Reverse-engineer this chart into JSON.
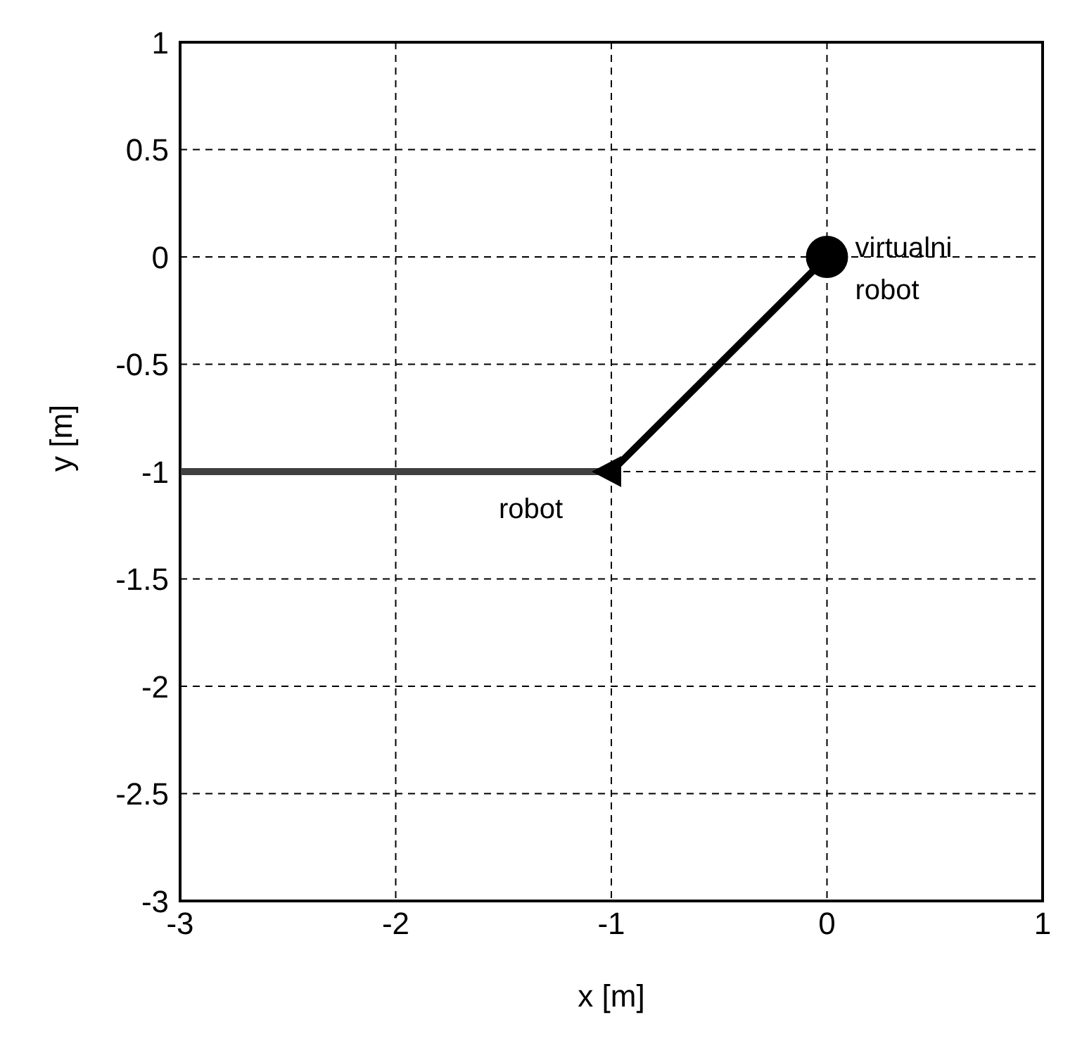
{
  "chart_data": {
    "type": "line",
    "xlabel": "x [m]",
    "ylabel": "y [m]",
    "xlim": [
      -3,
      1
    ],
    "ylim": [
      -3,
      1
    ],
    "xticks": [
      -3,
      -2,
      -1,
      0,
      1
    ],
    "yticks": [
      -3,
      -2.5,
      -2,
      -1.5,
      -1,
      -0.5,
      0,
      0.5,
      1
    ],
    "grid": true,
    "line_style": "solid",
    "series": [
      {
        "color": "#404040",
        "x": [
          -3,
          -1
        ],
        "values": [
          -1,
          -1
        ],
        "marker": "none"
      },
      {
        "color": "#000000",
        "x": [
          -1,
          0
        ],
        "values": [
          -1,
          0
        ],
        "marker": "none"
      },
      {
        "type": "scatter",
        "color": "#000000",
        "x": [
          -1
        ],
        "values": [
          -1
        ],
        "marker": "triangle"
      },
      {
        "type": "scatter",
        "color": "#000000",
        "x": [
          0
        ],
        "values": [
          0
        ],
        "marker": "circle"
      }
    ],
    "annotations": [
      {
        "text": "virtualni robot",
        "x": 0,
        "y": 0
      },
      {
        "text": "robot",
        "x": -1,
        "y": -1
      }
    ]
  }
}
